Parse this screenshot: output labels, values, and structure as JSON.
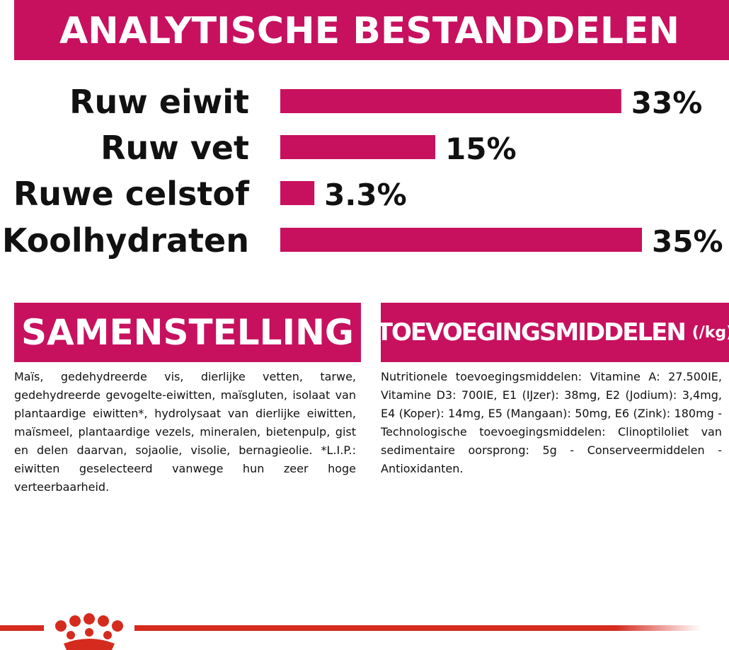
{
  "chart_data": {
    "type": "bar",
    "orientation": "horizontal",
    "title": "ANALYTISCHE BESTANDDELEN",
    "categories": [
      "Ruw eiwit",
      "Ruw vet",
      "Ruwe celstof",
      "Koolhydraten"
    ],
    "values": [
      33,
      15,
      3.3,
      35
    ],
    "value_labels": [
      "33%",
      "15%",
      "3.3%",
      "35%"
    ],
    "color": "#c7115f"
  },
  "sections": [
    {
      "title": "SAMENSTELLING",
      "text": "Maïs, gedehydreerde vis, dierlijke vetten, tarwe, gedehydreerde gevogelte-eiwitten, maïsgluten, isolaat van plantaardige eiwitten*, hydrolysaat van dierlijke eiwitten, maïsmeel, plantaardige vezels, mineralen, bietenpulp, gist en delen daarvan, sojaolie, visolie, bernagieolie. *L.I.P.: eiwitten geselecteerd vanwege hun zeer hoge verteerbaarheid."
    },
    {
      "title": "TOEVOEGINGSMIDDELEN",
      "unit": "(/kg)",
      "text": "Nutritionele toevoegingsmiddelen: Vitamine A: 27.500IE, Vitamine D3: 700IE, E1 (IJzer): 38mg, E2 (Jodium): 3,4mg, E4 (Koper): 14mg, E5 (Mangaan): 50mg, E6 (Zink): 180mg - Technologische toevoegingsmiddelen: Clinoptiloliet van sedimentaire oorsprong: 5g - Conserveermiddelen - Antioxidanten."
    }
  ]
}
